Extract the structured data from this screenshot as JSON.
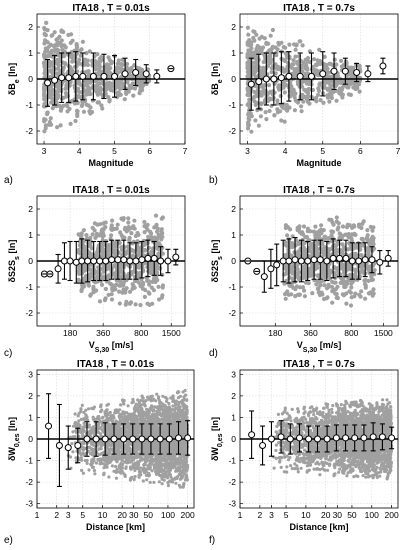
{
  "chart_data": [
    {
      "type": "scatter",
      "panel_label": "a)",
      "title": "ITA18 , T = 0.01s",
      "xlabel": "Magnitude",
      "ylabel": "δB_e [ln]",
      "xscale": "linear",
      "xlim": [
        2.8,
        7
      ],
      "ylim": [
        -2.5,
        2.5
      ],
      "xticks": [
        3,
        4,
        5,
        6,
        7
      ],
      "xtick_labels": [
        "3",
        "4",
        "5",
        "6",
        "7"
      ],
      "yticks": [
        -2,
        -1,
        0,
        1,
        2
      ],
      "ytick_labels": [
        "-2",
        "-1",
        "0",
        "1",
        "2"
      ],
      "grid": true,
      "zero_line": true,
      "scatter_band": {
        "x_min": 3.0,
        "x_max": 6.0,
        "y_half_width": [
          2.2,
          0.4
        ],
        "color": "#a0a0a0"
      },
      "binned_means": {
        "x": [
          3.1,
          3.3,
          3.5,
          3.7,
          3.9,
          4.1,
          4.4,
          4.7,
          5.0,
          5.3,
          5.6,
          5.9,
          6.2,
          6.6
        ],
        "y": [
          -0.15,
          -0.05,
          0.05,
          0.05,
          0.1,
          0.1,
          0.1,
          0.1,
          0.1,
          0.2,
          0.25,
          0.2,
          0.1,
          0.4
        ],
        "err": [
          0.9,
          0.95,
          0.95,
          0.95,
          0.95,
          0.9,
          0.9,
          0.85,
          0.8,
          0.6,
          0.5,
          0.35,
          0.25,
          0.0
        ]
      }
    },
    {
      "type": "scatter",
      "panel_label": "b)",
      "title": "ITA18 , T = 0.7s",
      "xlabel": "Magnitude",
      "ylabel": "δB_e [ln]",
      "xscale": "linear",
      "xlim": [
        2.8,
        7
      ],
      "ylim": [
        -2.5,
        2.5
      ],
      "xticks": [
        3,
        4,
        5,
        6,
        7
      ],
      "xtick_labels": [
        "3",
        "4",
        "5",
        "6",
        "7"
      ],
      "yticks": [
        -2,
        -1,
        0,
        1,
        2
      ],
      "ytick_labels": [
        "-2",
        "-1",
        "0",
        "1",
        "2"
      ],
      "grid": true,
      "zero_line": true,
      "scatter_band": {
        "x_min": 3.0,
        "x_max": 6.0,
        "y_half_width": [
          2.3,
          0.5
        ],
        "color": "#a0a0a0"
      },
      "binned_means": {
        "x": [
          3.1,
          3.3,
          3.5,
          3.7,
          3.9,
          4.1,
          4.4,
          4.7,
          5.0,
          5.3,
          5.6,
          5.9,
          6.2,
          6.6
        ],
        "y": [
          -0.2,
          -0.1,
          0.0,
          0.0,
          0.05,
          0.1,
          0.1,
          0.1,
          0.2,
          0.3,
          0.3,
          0.25,
          0.2,
          0.5
        ],
        "err": [
          1.0,
          1.05,
          1.0,
          1.0,
          1.0,
          0.95,
          0.9,
          0.9,
          0.85,
          0.7,
          0.5,
          0.35,
          0.3,
          0.3
        ]
      }
    },
    {
      "type": "scatter",
      "panel_label": "c)",
      "title": "ITA18 , T = 0.01s",
      "xlabel": "V_S,30 [m/s]",
      "ylabel": "δS2S_s [ln]",
      "xscale": "log",
      "xlim": [
        90,
        2000
      ],
      "ylim": [
        -2.5,
        2.5
      ],
      "xticks": [
        180,
        360,
        800,
        1500
      ],
      "xtick_labels": [
        "180",
        "360",
        "800",
        "1500"
      ],
      "yticks": [
        -2,
        -1,
        0,
        1,
        2
      ],
      "ytick_labels": [
        "-2",
        "-1",
        "0",
        "1",
        "2"
      ],
      "grid": true,
      "zero_line": true,
      "scatter_band": {
        "x_min": 150,
        "x_max": 1600,
        "y_half_width": [
          1.4,
          1.9
        ],
        "color": "#a0a0a0"
      },
      "binned_means": {
        "x": [
          105,
          118,
          140,
          160,
          180,
          205,
          230,
          260,
          295,
          335,
          380,
          430,
          490,
          555,
          630,
          715,
          810,
          920,
          1050,
          1200,
          1400,
          1650
        ],
        "y": [
          -0.5,
          -0.5,
          -0.3,
          0.0,
          0.0,
          -0.05,
          0.0,
          0.0,
          0.0,
          0.0,
          0.0,
          0.05,
          0.05,
          0.05,
          0.0,
          0.0,
          0.05,
          0.1,
          0.1,
          0.0,
          0.0,
          0.15
        ],
        "err": [
          0.0,
          0.0,
          0.55,
          0.7,
          0.75,
          0.8,
          0.85,
          0.8,
          0.75,
          0.75,
          0.75,
          0.75,
          0.75,
          0.75,
          0.7,
          0.7,
          0.7,
          0.7,
          0.65,
          0.55,
          0.45,
          0.3
        ]
      }
    },
    {
      "type": "scatter",
      "panel_label": "d)",
      "title": "ITA18 , T = 0.7s",
      "xlabel": "V_S,30 [m/s]",
      "ylabel": "δS2S_s [ln]",
      "xscale": "log",
      "xlim": [
        90,
        2000
      ],
      "ylim": [
        -2.5,
        2.5
      ],
      "xticks": [
        180,
        360,
        800,
        1500
      ],
      "xtick_labels": [
        "180",
        "360",
        "800",
        "1500"
      ],
      "yticks": [
        -2,
        -1,
        0,
        1,
        2
      ],
      "ytick_labels": [
        "-2",
        "-1",
        "0",
        "1",
        "2"
      ],
      "grid": true,
      "zero_line": true,
      "scatter_band": {
        "x_min": 150,
        "x_max": 1600,
        "y_half_width": [
          1.4,
          1.9
        ],
        "color": "#a0a0a0"
      },
      "binned_means": {
        "x": [
          105,
          125,
          145,
          165,
          185,
          210,
          235,
          265,
          300,
          340,
          385,
          435,
          495,
          560,
          635,
          720,
          815,
          925,
          1050,
          1200,
          1400,
          1650
        ],
        "y": [
          0.0,
          -0.4,
          -0.6,
          -0.3,
          -0.15,
          0.0,
          0.0,
          0.05,
          0.0,
          0.0,
          0.05,
          0.05,
          0.0,
          0.1,
          0.1,
          0.1,
          0.0,
          0.0,
          0.05,
          0.05,
          -0.05,
          0.1
        ],
        "err": [
          0.0,
          0.0,
          0.6,
          0.75,
          0.8,
          0.8,
          0.85,
          0.85,
          0.8,
          0.75,
          0.75,
          0.75,
          0.75,
          0.75,
          0.7,
          0.7,
          0.7,
          0.7,
          0.65,
          0.5,
          0.45,
          0.3
        ]
      }
    },
    {
      "type": "scatter",
      "panel_label": "e)",
      "title": "ITA18 , T = 0.01s",
      "xlabel": "Distance [km]",
      "ylabel": "δW_0,es [ln]",
      "xscale": "log",
      "xlim": [
        1,
        250
      ],
      "ylim": [
        -3.2,
        3.2
      ],
      "xticks": [
        1,
        2,
        3,
        5,
        10,
        20,
        30,
        50,
        100,
        200
      ],
      "xtick_labels": [
        "1",
        "2",
        "3",
        "5",
        "10",
        "20",
        "30",
        "50",
        "100",
        "200"
      ],
      "yticks": [
        -3,
        -2,
        -1,
        0,
        1,
        2,
        3
      ],
      "ytick_labels": [
        "-3",
        "-2",
        "-1",
        "0",
        "1",
        "2",
        "3"
      ],
      "grid": true,
      "zero_line": true,
      "scatter_band": {
        "x_min": 3,
        "x_max": 200,
        "y_half_width": [
          1.5,
          2.3
        ],
        "color": "#a0a0a0"
      },
      "binned_means": {
        "x": [
          1.5,
          2.2,
          3.0,
          4.2,
          5.8,
          8.0,
          11,
          15,
          21,
          29,
          40,
          55,
          76,
          105,
          145,
          200
        ],
        "y": [
          0.6,
          -0.3,
          -0.4,
          -0.3,
          0.0,
          0.0,
          0.0,
          0.0,
          0.0,
          0.0,
          0.0,
          0.0,
          0.0,
          0.0,
          0.05,
          0.05
        ],
        "err": [
          1.5,
          1.9,
          1.0,
          0.8,
          0.8,
          0.8,
          0.75,
          0.7,
          0.7,
          0.7,
          0.7,
          0.7,
          0.7,
          0.7,
          0.75,
          0.8
        ]
      }
    },
    {
      "type": "scatter",
      "panel_label": "f)",
      "title": "ITA18 , T = 0.7s",
      "xlabel": "Distance [km]",
      "ylabel": "δW_0,es [ln]",
      "xscale": "log",
      "xlim": [
        1,
        250
      ],
      "ylim": [
        -3.2,
        3.2
      ],
      "xticks": [
        1,
        2,
        3,
        5,
        10,
        20,
        30,
        50,
        100,
        200
      ],
      "xtick_labels": [
        "1",
        "2",
        "3",
        "5",
        "10",
        "20",
        "30",
        "50",
        "100",
        "200"
      ],
      "yticks": [
        -3,
        -2,
        -1,
        0,
        1,
        2,
        3
      ],
      "ytick_labels": [
        "-3",
        "-2",
        "-1",
        "0",
        "1",
        "2",
        "3"
      ],
      "grid": true,
      "zero_line": true,
      "scatter_band": {
        "x_min": 3,
        "x_max": 200,
        "y_half_width": [
          1.5,
          1.9
        ],
        "color": "#a0a0a0"
      },
      "binned_means": {
        "x": [
          1.5,
          2.2,
          3.0,
          4.2,
          5.8,
          8.0,
          11,
          15,
          21,
          29,
          40,
          55,
          76,
          105,
          145,
          200
        ],
        "y": [
          0.2,
          -0.3,
          0.0,
          0.1,
          0.0,
          0.05,
          0.0,
          0.0,
          0.0,
          0.05,
          0.05,
          0.05,
          0.05,
          0.1,
          0.1,
          0.05
        ],
        "err": [
          1.1,
          0.9,
          0.8,
          0.75,
          0.7,
          0.65,
          0.6,
          0.6,
          0.6,
          0.6,
          0.6,
          0.6,
          0.6,
          0.65,
          0.6,
          0.5
        ]
      }
    }
  ]
}
